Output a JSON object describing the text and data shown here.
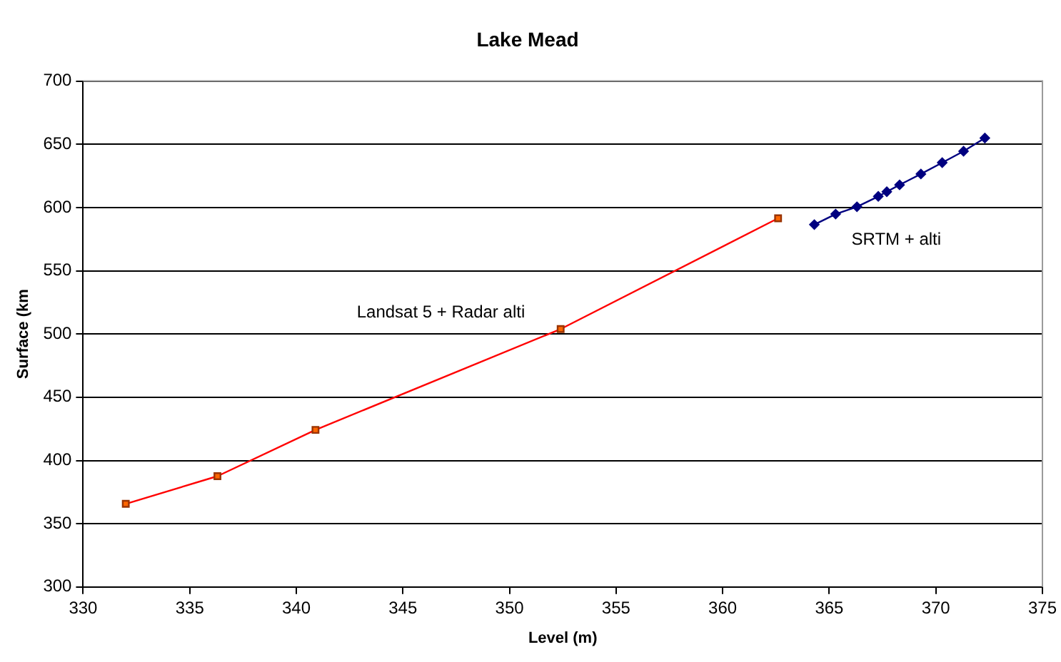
{
  "chart_data": {
    "type": "line",
    "title": "Lake Mead",
    "xlabel": "Level (m)",
    "ylabel": "Surface (km",
    "xlim": [
      330,
      375
    ],
    "xticks": [
      330,
      335,
      340,
      345,
      350,
      355,
      360,
      365,
      370,
      375
    ],
    "ylim": [
      300,
      700
    ],
    "yticks": [
      300,
      350,
      400,
      450,
      500,
      550,
      600,
      650,
      700
    ],
    "grid": "y",
    "legend": false,
    "line_style": "solid",
    "series": [
      {
        "name": "Landsat 5 + Radar alti",
        "color": "#ff0000",
        "marker": "square",
        "x": [
          332.0,
          336.3,
          340.9,
          352.4,
          362.6
        ],
        "values": [
          365.7,
          387.6,
          424.2,
          503.9,
          591.5
        ]
      },
      {
        "name": "SRTM + alti",
        "color": "#000080",
        "marker": "diamond",
        "x": [
          364.3,
          365.3,
          366.3,
          367.3,
          367.7,
          368.3,
          369.3,
          370.3,
          371.3,
          372.3
        ],
        "values": [
          586.5,
          594.8,
          600.6,
          608.8,
          612.5,
          617.9,
          626.5,
          635.5,
          644.5,
          654.9
        ]
      }
    ]
  }
}
